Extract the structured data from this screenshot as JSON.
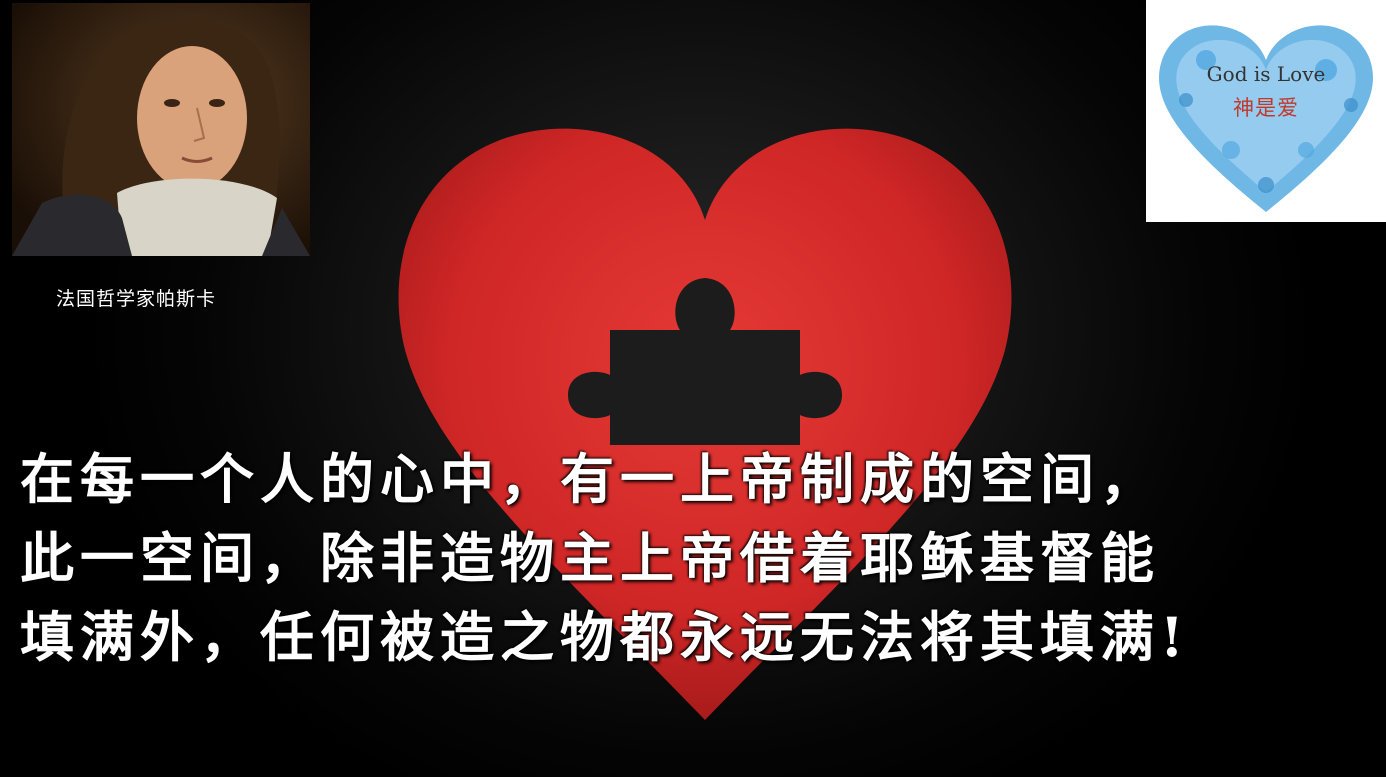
{
  "portrait": {
    "caption": "法国哲学家帕斯卡"
  },
  "love_card": {
    "title_en": "God is Love",
    "title_cn": "神是爱"
  },
  "quote": {
    "lines": [
      "在每一个人的心中，有一上帝制成的空间，",
      "此一空间，除非造物主上帝借着耶稣基督能",
      "填满外，任何被造之物都永远无法将其填满!"
    ]
  },
  "colors": {
    "heart_red": "#d12a2a",
    "puzzle_hole": "#1c1c1c",
    "bubble_blue": "#4aa3df",
    "cn_red": "#c0392b"
  }
}
